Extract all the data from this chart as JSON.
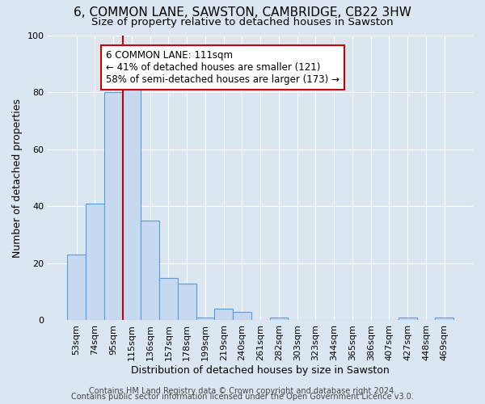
{
  "title": "6, COMMON LANE, SAWSTON, CAMBRIDGE, CB22 3HW",
  "subtitle": "Size of property relative to detached houses in Sawston",
  "xlabel": "Distribution of detached houses by size in Sawston",
  "ylabel": "Number of detached properties",
  "bar_labels": [
    "53sqm",
    "74sqm",
    "95sqm",
    "115sqm",
    "136sqm",
    "157sqm",
    "178sqm",
    "199sqm",
    "219sqm",
    "240sqm",
    "261sqm",
    "282sqm",
    "303sqm",
    "323sqm",
    "344sqm",
    "365sqm",
    "386sqm",
    "407sqm",
    "427sqm",
    "448sqm",
    "469sqm"
  ],
  "bar_values": [
    23,
    41,
    80,
    84,
    35,
    15,
    13,
    1,
    4,
    3,
    0,
    1,
    0,
    0,
    0,
    0,
    0,
    0,
    1,
    0,
    1
  ],
  "bar_color": "#c6d9f0",
  "bar_edge_color": "#5b9bd5",
  "bg_color": "#dce6f1",
  "plot_bg_color": "#dce6f1",
  "grid_color": "#ffffff",
  "vline_x_index": 3,
  "vline_color": "#cc0000",
  "annotation_text": "6 COMMON LANE: 111sqm\n← 41% of detached houses are smaller (121)\n58% of semi-detached houses are larger (173) →",
  "annotation_box_color": "#ffffff",
  "annotation_box_edge_color": "#cc0000",
  "ylim": [
    0,
    100
  ],
  "yticks": [
    0,
    20,
    40,
    60,
    80,
    100
  ],
  "footer_line1": "Contains HM Land Registry data © Crown copyright and database right 2024.",
  "footer_line2": "Contains public sector information licensed under the Open Government Licence v3.0.",
  "title_fontsize": 11,
  "subtitle_fontsize": 9.5,
  "axis_label_fontsize": 9,
  "tick_fontsize": 8,
  "annotation_fontsize": 8.5,
  "footer_fontsize": 7
}
